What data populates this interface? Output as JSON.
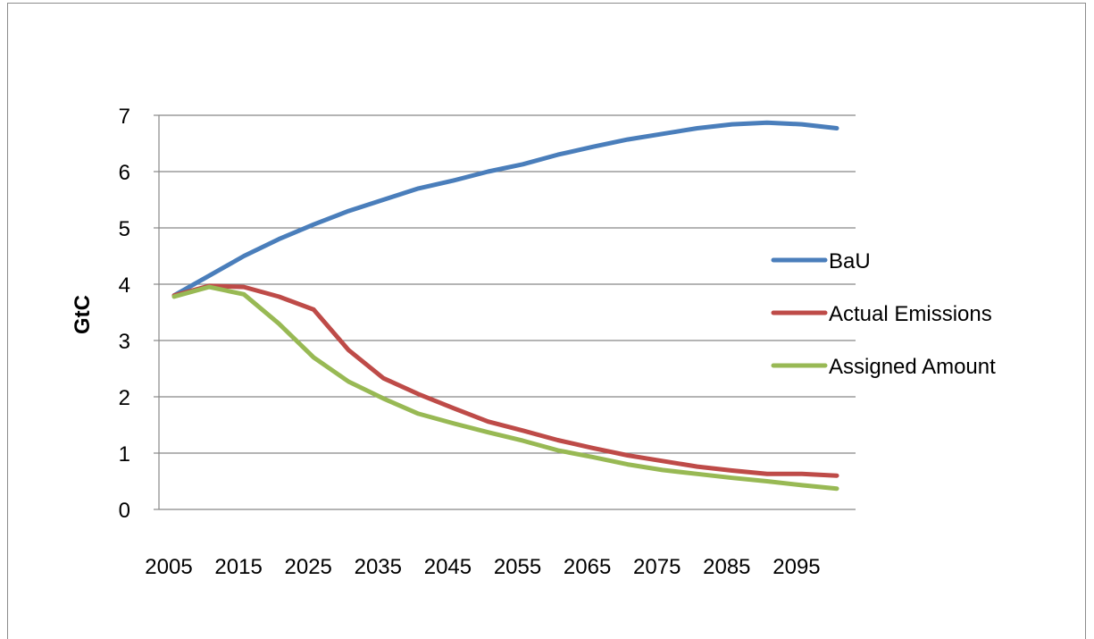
{
  "chart_data": {
    "type": "line",
    "title": "",
    "xlabel": "",
    "ylabel": "GtC",
    "ylim": [
      0,
      7
    ],
    "yticks": [
      0,
      1,
      2,
      3,
      4,
      5,
      6,
      7
    ],
    "grid": true,
    "legend_position": "right",
    "x": [
      2005,
      2010,
      2015,
      2020,
      2025,
      2030,
      2035,
      2040,
      2045,
      2050,
      2055,
      2060,
      2065,
      2070,
      2075,
      2080,
      2085,
      2090,
      2095,
      2100
    ],
    "x_tick_labels": [
      "2005",
      "2015",
      "2025",
      "2035",
      "2045",
      "2055",
      "2065",
      "2075",
      "2085",
      "2095"
    ],
    "series": [
      {
        "name": "BaU",
        "color": "#4a7ebb",
        "values": [
          3.8,
          4.15,
          4.5,
          4.8,
          5.06,
          5.3,
          5.5,
          5.7,
          5.84,
          6.0,
          6.13,
          6.3,
          6.44,
          6.57,
          6.67,
          6.77,
          6.84,
          6.87,
          6.84,
          6.77
        ]
      },
      {
        "name": "Actual Emissions",
        "color": "#be4b48",
        "values": [
          3.8,
          3.97,
          3.95,
          3.78,
          3.55,
          2.83,
          2.33,
          2.05,
          1.8,
          1.56,
          1.4,
          1.23,
          1.09,
          0.96,
          0.86,
          0.76,
          0.69,
          0.63,
          0.63,
          0.6
        ]
      },
      {
        "name": "Assigned Amount",
        "color": "#98b954",
        "values": [
          3.78,
          3.95,
          3.82,
          3.3,
          2.7,
          2.27,
          1.97,
          1.7,
          1.53,
          1.37,
          1.22,
          1.05,
          0.93,
          0.8,
          0.7,
          0.63,
          0.56,
          0.5,
          0.43,
          0.37
        ]
      }
    ]
  },
  "colors": {
    "gridline": "#888888",
    "axis": "#888888",
    "frame": "#8c8c8c"
  }
}
